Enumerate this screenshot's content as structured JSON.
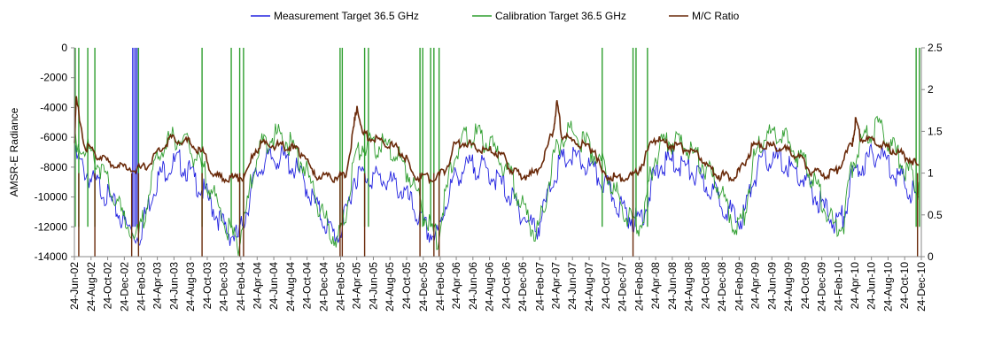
{
  "chart_data": {
    "type": "line",
    "title": "",
    "legend": {
      "position": "top",
      "entries": [
        {
          "name": "Measurement Target 36.5 GHz",
          "color": "#2323e0"
        },
        {
          "name": "Calibration Target 36.5 GHz",
          "color": "#2e9e2e"
        },
        {
          "name": "M/C Ratio",
          "color": "#6a2a0a"
        }
      ]
    },
    "ylabel": "AMSR-E Radiance",
    "y2label": "",
    "ylim": [
      -14000,
      0
    ],
    "y2lim": [
      0,
      2.5
    ],
    "yticks": [
      "0",
      "-2000",
      "-4000",
      "-6000",
      "-8000",
      "-10000",
      "-12000",
      "-14000"
    ],
    "y2ticks": [
      "2.5",
      "2",
      "1.5",
      "1",
      "0.5",
      "0"
    ],
    "xlim": [
      "2002-06-24",
      "2010-12-24"
    ],
    "xticks": [
      "24-Jun-02",
      "24-Aug-02",
      "24-Oct-02",
      "24-Dec-02",
      "24-Feb-03",
      "24-Apr-03",
      "24-Jun-03",
      "24-Aug-03",
      "24-Oct-03",
      "24-Dec-03",
      "24-Feb-04",
      "24-Apr-04",
      "24-Jun-04",
      "24-Aug-04",
      "24-Oct-04",
      "24-Dec-04",
      "24-Feb-05",
      "24-Apr-05",
      "24-Jun-05",
      "24-Aug-05",
      "24-Oct-05",
      "24-Dec-05",
      "24-Feb-06",
      "24-Apr-06",
      "24-Jun-06",
      "24-Aug-06",
      "24-Oct-06",
      "24-Dec-06",
      "24-Feb-07",
      "24-Apr-07",
      "24-Jun-07",
      "24-Aug-07",
      "24-Oct-07",
      "24-Dec-07",
      "24-Feb-08",
      "24-Apr-08",
      "24-Jun-08",
      "24-Aug-08",
      "24-Oct-08",
      "24-Dec-08",
      "24-Feb-09",
      "24-Apr-09",
      "24-Jun-09",
      "24-Aug-09",
      "24-Oct-09",
      "24-Dec-09",
      "24-Feb-10",
      "24-Apr-10",
      "24-Jun-10",
      "24-Aug-10",
      "24-Oct-10",
      "24-Dec-10"
    ],
    "series": [
      {
        "name": "Measurement Target 36.5 GHz",
        "axis": "left",
        "color": "#2323e0",
        "x": [
          "2002-06-24",
          "2002-08-01",
          "2002-09-01",
          "2002-10-01",
          "2002-11-01",
          "2002-12-01",
          "2003-01-01",
          "2003-02-15",
          "2003-03-15",
          "2003-04-15",
          "2003-05-15",
          "2003-06-15",
          "2003-07-15",
          "2003-08-15",
          "2003-09-15",
          "2003-10-15",
          "2003-11-15",
          "2003-12-15",
          "2004-01-15",
          "2004-02-15",
          "2004-03-15",
          "2004-04-15",
          "2004-05-15",
          "2004-06-15",
          "2004-07-15",
          "2004-08-15",
          "2004-09-15",
          "2004-10-15",
          "2004-11-15",
          "2004-12-15",
          "2005-01-15",
          "2005-02-15",
          "2005-03-15",
          "2005-04-15",
          "2005-05-15",
          "2005-06-15",
          "2005-07-15",
          "2005-08-15",
          "2005-09-15",
          "2005-10-15",
          "2005-11-15",
          "2005-12-15",
          "2006-01-15",
          "2006-02-15",
          "2006-03-15",
          "2006-04-15",
          "2006-05-15",
          "2006-06-15",
          "2006-07-15",
          "2006-08-15",
          "2006-09-15",
          "2006-10-15",
          "2006-11-15",
          "2006-12-15",
          "2007-01-15",
          "2007-02-15",
          "2007-03-15",
          "2007-04-15",
          "2007-05-15",
          "2007-06-15",
          "2007-07-15",
          "2007-08-15",
          "2007-09-15",
          "2007-10-15",
          "2007-11-15",
          "2007-12-15",
          "2008-01-15",
          "2008-02-15",
          "2008-03-15",
          "2008-04-15",
          "2008-05-15",
          "2008-06-15",
          "2008-07-15",
          "2008-08-15",
          "2008-09-15",
          "2008-10-15",
          "2008-11-15",
          "2008-12-15",
          "2009-01-15",
          "2009-02-15",
          "2009-03-15",
          "2009-04-15",
          "2009-05-15",
          "2009-06-15",
          "2009-07-15",
          "2009-08-15",
          "2009-09-15",
          "2009-10-15",
          "2009-11-15",
          "2009-12-15",
          "2010-01-15",
          "2010-02-15",
          "2010-03-15",
          "2010-04-15",
          "2010-05-15",
          "2010-06-15",
          "2010-07-15",
          "2010-08-15",
          "2010-09-15",
          "2010-10-15",
          "2010-11-15",
          "2010-12-15"
        ],
        "y": [
          -6800,
          -7800,
          -8600,
          -8900,
          -9800,
          -10600,
          -11500,
          -12300,
          -10500,
          -8700,
          -7800,
          -7400,
          -7200,
          -7800,
          -8600,
          -9300,
          -10300,
          -11300,
          -12000,
          -12300,
          -10500,
          -8300,
          -7300,
          -7000,
          -6900,
          -7200,
          -7800,
          -8600,
          -9800,
          -10800,
          -11800,
          -12200,
          -10800,
          -8200,
          -8000,
          -8200,
          -8300,
          -8500,
          -8800,
          -9300,
          -10200,
          -11200,
          -12000,
          -12200,
          -10000,
          -8400,
          -7800,
          -7500,
          -7500,
          -7800,
          -8300,
          -8900,
          -9700,
          -10500,
          -11300,
          -11700,
          -10200,
          -8200,
          -7200,
          -6900,
          -7100,
          -7500,
          -8000,
          -8600,
          -9400,
          -10200,
          -10800,
          -11200,
          -10400,
          -8400,
          -7400,
          -7200,
          -7300,
          -7600,
          -8100,
          -8600,
          -9100,
          -9700,
          -10400,
          -11200,
          -10700,
          -8400,
          -7300,
          -7000,
          -7100,
          -7400,
          -7900,
          -8400,
          -9100,
          -9900,
          -10600,
          -11300,
          -10800,
          -8200,
          -7500,
          -7000,
          -6600,
          -7000,
          -7800,
          -8400,
          -9100,
          -10000
        ],
        "spikes_to_zero": [
          "2003-01-24",
          "2003-02-01",
          "2003-02-08"
        ]
      },
      {
        "name": "Calibration Target 36.5 GHz",
        "axis": "left",
        "color": "#2e9e2e",
        "x": [
          "2002-06-24",
          "2002-08-01",
          "2002-09-01",
          "2002-10-01",
          "2002-11-01",
          "2002-12-01",
          "2003-01-01",
          "2003-02-15",
          "2003-03-15",
          "2003-04-15",
          "2003-05-15",
          "2003-06-15",
          "2003-07-15",
          "2003-08-15",
          "2003-09-15",
          "2003-10-15",
          "2003-11-15",
          "2003-12-15",
          "2004-01-15",
          "2004-02-15",
          "2004-03-15",
          "2004-04-15",
          "2004-05-15",
          "2004-06-15",
          "2004-07-15",
          "2004-08-15",
          "2004-09-15",
          "2004-10-15",
          "2004-11-15",
          "2004-12-15",
          "2005-01-15",
          "2005-02-15",
          "2005-03-15",
          "2005-04-15",
          "2005-05-15",
          "2005-06-15",
          "2005-07-15",
          "2005-08-15",
          "2005-09-15",
          "2005-10-15",
          "2005-11-15",
          "2005-12-15",
          "2006-01-15",
          "2006-02-15",
          "2006-03-15",
          "2006-04-15",
          "2006-05-15",
          "2006-06-15",
          "2006-07-15",
          "2006-08-15",
          "2006-09-15",
          "2006-10-15",
          "2006-11-15",
          "2006-12-15",
          "2007-01-15",
          "2007-02-15",
          "2007-03-15",
          "2007-04-15",
          "2007-05-15",
          "2007-06-15",
          "2007-07-15",
          "2007-08-15",
          "2007-09-15",
          "2007-10-15",
          "2007-11-15",
          "2007-12-15",
          "2008-01-15",
          "2008-02-15",
          "2008-03-15",
          "2008-04-15",
          "2008-05-15",
          "2008-06-15",
          "2008-07-15",
          "2008-08-15",
          "2008-09-15",
          "2008-10-15",
          "2008-11-15",
          "2008-12-15",
          "2009-01-15",
          "2009-02-15",
          "2009-03-15",
          "2009-04-15",
          "2009-05-15",
          "2009-06-15",
          "2009-07-15",
          "2009-08-15",
          "2009-09-15",
          "2009-10-15",
          "2009-11-15",
          "2009-12-15",
          "2010-01-15",
          "2010-02-15",
          "2010-03-15",
          "2010-04-15",
          "2010-05-15",
          "2010-06-15",
          "2010-07-15",
          "2010-08-15",
          "2010-09-15",
          "2010-10-15",
          "2010-11-15",
          "2010-12-15"
        ],
        "y": [
          -5600,
          -6100,
          -6800,
          -7600,
          -9000,
          -10200,
          -11200,
          -12400,
          -10000,
          -7500,
          -6200,
          -5700,
          -5600,
          -6200,
          -7100,
          -8000,
          -9300,
          -10800,
          -12000,
          -12600,
          -10400,
          -7400,
          -6000,
          -5500,
          -5400,
          -5900,
          -6600,
          -7600,
          -9000,
          -10600,
          -11800,
          -12500,
          -10500,
          -7000,
          -6100,
          -6000,
          -6100,
          -6300,
          -6700,
          -7400,
          -8500,
          -10000,
          -11600,
          -12300,
          -9600,
          -6800,
          -5800,
          -5400,
          -5500,
          -5900,
          -6600,
          -7400,
          -8500,
          -9800,
          -11100,
          -12000,
          -10000,
          -7000,
          -5600,
          -5300,
          -5500,
          -6000,
          -6700,
          -7500,
          -8600,
          -9800,
          -10800,
          -11600,
          -10400,
          -7200,
          -6000,
          -5800,
          -5900,
          -6300,
          -6800,
          -7400,
          -8200,
          -9100,
          -10300,
          -11700,
          -10800,
          -7200,
          -5700,
          -5300,
          -5400,
          -5800,
          -6400,
          -7200,
          -8200,
          -9400,
          -10600,
          -11900,
          -11200,
          -7400,
          -6000,
          -5200,
          -4900,
          -5400,
          -6400,
          -7300,
          -8100,
          -9000
        ],
        "spikes_to_zero": [
          "2002-06-27",
          "2002-07-10",
          "2002-08-12",
          "2002-09-07",
          "2003-02-14",
          "2003-10-05",
          "2004-01-20",
          "2004-02-20",
          "2004-03-05",
          "2005-02-22",
          "2005-03-02",
          "2005-05-23",
          "2005-06-06",
          "2005-12-12",
          "2005-12-22",
          "2006-01-20",
          "2006-02-01",
          "2006-02-20",
          "2007-10-11",
          "2008-02-01",
          "2008-02-12",
          "2008-03-25",
          "2010-12-05",
          "2010-12-17"
        ]
      },
      {
        "name": "M/C Ratio",
        "axis": "right",
        "color": "#6a2a0a",
        "x": [
          "2002-06-24",
          "2002-07-01",
          "2002-08-01",
          "2002-09-01",
          "2002-10-01",
          "2002-11-01",
          "2002-12-01",
          "2003-01-01",
          "2003-02-15",
          "2003-03-15",
          "2003-04-15",
          "2003-05-15",
          "2003-06-15",
          "2003-07-15",
          "2003-08-15",
          "2003-09-15",
          "2003-10-15",
          "2003-11-15",
          "2003-12-15",
          "2004-01-15",
          "2004-02-15",
          "2004-03-15",
          "2004-04-15",
          "2004-05-15",
          "2004-06-15",
          "2004-07-15",
          "2004-08-15",
          "2004-09-15",
          "2004-10-15",
          "2004-11-15",
          "2004-12-15",
          "2005-01-15",
          "2005-02-15",
          "2005-03-15",
          "2005-04-10",
          "2005-04-25",
          "2005-05-15",
          "2005-06-15",
          "2005-07-15",
          "2005-08-15",
          "2005-09-15",
          "2005-10-15",
          "2005-11-15",
          "2005-12-15",
          "2006-01-15",
          "2006-02-15",
          "2006-03-15",
          "2006-04-15",
          "2006-05-15",
          "2006-06-15",
          "2006-07-15",
          "2006-08-15",
          "2006-09-15",
          "2006-10-15",
          "2006-11-15",
          "2006-12-15",
          "2007-01-15",
          "2007-02-15",
          "2007-03-15",
          "2007-04-15",
          "2007-04-28",
          "2007-05-15",
          "2007-06-15",
          "2007-07-15",
          "2007-08-15",
          "2007-09-15",
          "2007-10-15",
          "2007-11-15",
          "2007-12-15",
          "2008-01-15",
          "2008-02-15",
          "2008-03-15",
          "2008-04-15",
          "2008-05-15",
          "2008-06-15",
          "2008-07-15",
          "2008-08-15",
          "2008-09-15",
          "2008-10-15",
          "2008-11-15",
          "2008-12-15",
          "2009-01-15",
          "2009-02-15",
          "2009-03-15",
          "2009-04-15",
          "2009-05-15",
          "2009-06-15",
          "2009-07-15",
          "2009-08-15",
          "2009-09-15",
          "2009-10-15",
          "2009-11-15",
          "2009-12-15",
          "2010-01-15",
          "2010-02-15",
          "2010-03-15",
          "2010-04-15",
          "2010-04-28",
          "2010-05-15",
          "2010-06-15",
          "2010-07-15",
          "2010-08-15",
          "2010-09-15",
          "2010-10-15",
          "2010-11-15",
          "2010-12-15"
        ],
        "y": [
          1.4,
          1.92,
          1.35,
          1.28,
          1.22,
          1.15,
          1.1,
          1.1,
          1.08,
          1.1,
          1.25,
          1.35,
          1.45,
          1.42,
          1.4,
          1.32,
          1.25,
          1.0,
          0.98,
          0.97,
          0.98,
          1.0,
          1.3,
          1.38,
          1.37,
          1.36,
          1.35,
          1.3,
          1.25,
          1.0,
          0.99,
          0.98,
          0.98,
          1.02,
          1.5,
          1.85,
          1.5,
          1.45,
          1.42,
          1.38,
          1.33,
          1.26,
          1.0,
          0.98,
          0.97,
          1.0,
          1.05,
          1.35,
          1.4,
          1.36,
          1.34,
          1.3,
          1.28,
          1.22,
          1.05,
          1.0,
          1.0,
          1.05,
          1.25,
          1.55,
          1.9,
          1.5,
          1.42,
          1.38,
          1.34,
          1.3,
          1.0,
          0.98,
          0.97,
          0.98,
          1.05,
          1.2,
          1.45,
          1.4,
          1.37,
          1.35,
          1.32,
          1.28,
          1.2,
          1.05,
          1.0,
          0.99,
          1.0,
          1.15,
          1.35,
          1.38,
          1.36,
          1.34,
          1.3,
          1.25,
          1.2,
          1.05,
          1.02,
          1.02,
          1.05,
          1.2,
          1.4,
          1.67,
          1.45,
          1.42,
          1.38,
          1.34,
          1.3,
          1.25,
          1.2,
          1.1
        ],
        "spikes_to_zero": [
          "2002-07-10",
          "2002-09-07",
          "2003-01-20",
          "2003-02-14",
          "2003-10-05",
          "2004-02-20",
          "2004-03-05",
          "2005-02-22",
          "2005-03-02",
          "2005-05-23",
          "2005-12-12",
          "2006-02-01",
          "2006-02-20",
          "2008-02-01",
          "2010-12-10"
        ]
      }
    ],
    "grid": false
  }
}
